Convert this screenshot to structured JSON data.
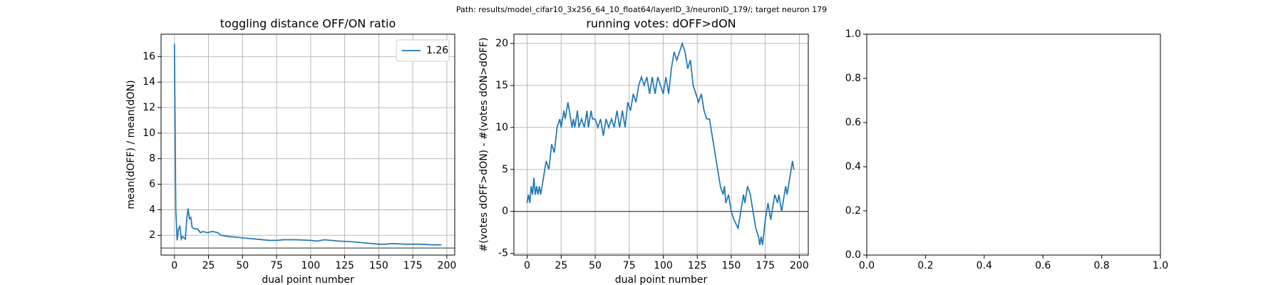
{
  "figure_title": "Path: results/model_cifar10_3x256_64_10_float64/layerID_3/neuronID_179/; target neuron 179",
  "chart_data": [
    {
      "type": "line",
      "title": "toggling distance OFF/ON ratio",
      "xlabel": "dual point number",
      "ylabel": "mean(dOFF) / mean(dON)",
      "xlim": [
        -9.8,
        205.8
      ],
      "ylim": [
        0.45,
        17.75
      ],
      "xticks": [
        0,
        25,
        50,
        75,
        100,
        125,
        150,
        175,
        200
      ],
      "yticks": [
        2,
        4,
        6,
        8,
        10,
        12,
        14,
        16
      ],
      "grid": true,
      "hline": 1,
      "legend": "upper right",
      "series": [
        {
          "name": "1.26",
          "color": "#1f77b4",
          "x": [
            0,
            1,
            2,
            3,
            4,
            5,
            6,
            7,
            8,
            9,
            10,
            11,
            12,
            13,
            15,
            17,
            19,
            21,
            24,
            28,
            32,
            34,
            40,
            50,
            60,
            70,
            75,
            80,
            90,
            100,
            105,
            110,
            120,
            130,
            140,
            150,
            155,
            160,
            170,
            180,
            190,
            196
          ],
          "values": [
            17,
            4,
            1.6,
            2.5,
            2.7,
            1.7,
            1.9,
            1.8,
            1.7,
            3.2,
            4.1,
            3.3,
            3.4,
            2.6,
            2.5,
            2.5,
            2.2,
            2.3,
            2.2,
            2.3,
            2.2,
            2.0,
            1.9,
            1.8,
            1.7,
            1.6,
            1.6,
            1.65,
            1.65,
            1.6,
            1.55,
            1.65,
            1.55,
            1.5,
            1.4,
            1.3,
            1.3,
            1.35,
            1.3,
            1.3,
            1.25,
            1.26
          ]
        }
      ]
    },
    {
      "type": "line",
      "title": "running votes: dOFF>dON",
      "xlabel": "dual point number",
      "ylabel": "#(votes dOFF>dON) - #(votes dON>dOFF)",
      "xlim": [
        -9.7,
        206.6
      ],
      "ylim": [
        -5.2,
        21.1
      ],
      "xticks": [
        0,
        25,
        50,
        75,
        100,
        125,
        150,
        175,
        200
      ],
      "yticks": [
        -5,
        0,
        5,
        10,
        15,
        20
      ],
      "grid": true,
      "hline": 0,
      "series": [
        {
          "color": "#1f77b4",
          "x": [
            0,
            1,
            2,
            3,
            4,
            5,
            6,
            7,
            8,
            9,
            10,
            12,
            14,
            16,
            18,
            20,
            22,
            24,
            25,
            27,
            28,
            30,
            32,
            33,
            34,
            35,
            37,
            38,
            40,
            42,
            44,
            45,
            47,
            48,
            50,
            52,
            54,
            56,
            58,
            60,
            62,
            64,
            66,
            68,
            70,
            72,
            74,
            76,
            78,
            80,
            82,
            84,
            86,
            88,
            90,
            92,
            94,
            96,
            98,
            100,
            102,
            104,
            106,
            108,
            110,
            112,
            114,
            116,
            118,
            120,
            122,
            124,
            126,
            128,
            130,
            132,
            134,
            136,
            138,
            140,
            142,
            144,
            145,
            146,
            148,
            150,
            152,
            155,
            157,
            159,
            160,
            162,
            164,
            166,
            168,
            170,
            171,
            172,
            173,
            175,
            177,
            179,
            181,
            182,
            184,
            185,
            187,
            189,
            190,
            191,
            193,
            195,
            196
          ],
          "values": [
            1,
            2,
            1,
            3,
            2,
            4,
            2,
            3,
            2,
            3,
            2,
            4,
            6,
            5,
            8,
            7,
            10,
            11,
            10,
            12,
            11,
            13,
            11,
            10,
            11,
            10,
            12,
            10,
            11,
            10,
            12,
            10,
            12,
            11,
            11,
            10,
            11,
            9,
            11,
            10,
            11,
            10,
            12,
            10,
            12,
            10,
            13,
            12,
            14,
            13,
            15,
            16,
            15,
            16,
            14,
            16,
            14,
            16,
            15,
            14,
            16,
            14,
            17,
            19,
            18,
            19,
            20,
            19,
            17,
            18,
            15,
            14,
            13,
            14,
            12,
            11,
            11,
            9,
            7,
            5,
            3,
            2,
            3,
            1,
            2,
            0,
            -1,
            -2,
            0,
            2,
            1,
            3,
            2,
            0,
            -2,
            -3,
            -4,
            -3,
            -4,
            -1,
            1,
            -1,
            1,
            2,
            1,
            2,
            0,
            2,
            3,
            2,
            4,
            6,
            5
          ]
        }
      ]
    },
    {
      "type": "line",
      "xlim": [
        0,
        1
      ],
      "ylim": [
        0,
        1
      ],
      "xticks": [
        {
          "value": 0,
          "label": "0.0"
        },
        0.2,
        0.4,
        0.6,
        0.8,
        {
          "value": 1,
          "label": "1.0"
        }
      ],
      "yticks": [
        {
          "value": 0,
          "label": "0.0"
        },
        0.2,
        0.4,
        0.6,
        0.8,
        {
          "value": 1,
          "label": "1.0"
        }
      ]
    }
  ]
}
